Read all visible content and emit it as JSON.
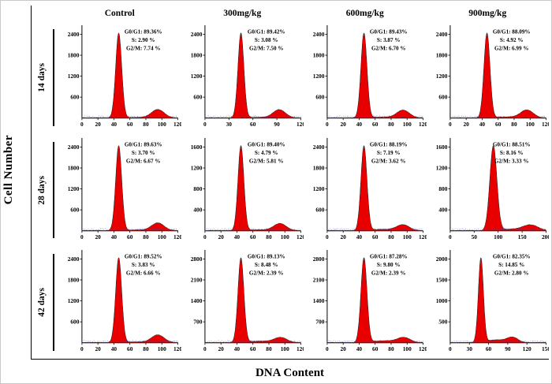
{
  "figure": {
    "y_axis_label": "Cell Number",
    "x_axis_label": "DNA Content",
    "columns": [
      "Control",
      "300mg/kg",
      "600mg/kg",
      "900mg/kg"
    ],
    "rows": [
      "14 days",
      "28 days",
      "42 days"
    ],
    "colors": {
      "histogram_fill": "#e80000",
      "histogram_stroke": "#1a1a1a",
      "noise_trace": "#4747b8",
      "axis": "#000000"
    }
  },
  "chart_data": {
    "type": "area",
    "title": "",
    "xlabel": "DNA Content",
    "ylabel": "Cell Number",
    "description": "Flow cytometry cell-cycle DNA histograms: 3 time points (rows) x 4 dose groups (columns), red G0/G1 peak with smaller G2/M peak",
    "panels": [
      {
        "row": "14 days",
        "column": "Control",
        "g0g1_pct": 89.36,
        "s_pct": 2.9,
        "g2m_pct": 7.74,
        "annotation_lines": [
          "G0/G1: 89.36%",
          "S: 2.90 %",
          "G2/M: 7.74 %"
        ],
        "y_ticks": [
          600,
          1200,
          1800,
          2400
        ],
        "x_ticks": [
          0,
          20,
          40,
          60,
          80,
          100,
          120
        ],
        "peak_x": 46,
        "g2m_peak_x": 95
      },
      {
        "row": "14 days",
        "column": "300mg/kg",
        "g0g1_pct": 89.42,
        "s_pct": 3.08,
        "g2m_pct": 7.5,
        "annotation_lines": [
          "G0/G1: 89.42%",
          "S: 3.08 %",
          "G2/M: 7.50 %"
        ],
        "y_ticks": [
          600,
          1200,
          1800,
          2400
        ],
        "x_ticks": [
          0,
          30,
          60,
          90,
          120
        ],
        "peak_x": 45,
        "g2m_peak_x": 93
      },
      {
        "row": "14 days",
        "column": "600mg/kg",
        "g0g1_pct": 89.43,
        "s_pct": 3.87,
        "g2m_pct": 6.7,
        "annotation_lines": [
          "G0/G1: 89.43%",
          "S: 3.87 %",
          "G2/M: 6.70 %"
        ],
        "y_ticks": [
          600,
          1200,
          1800,
          2400
        ],
        "x_ticks": [
          0,
          20,
          40,
          60,
          80,
          100,
          120
        ],
        "peak_x": 46,
        "g2m_peak_x": 95
      },
      {
        "row": "14 days",
        "column": "900mg/kg",
        "g0g1_pct": 88.09,
        "s_pct": 4.92,
        "g2m_pct": 6.99,
        "annotation_lines": [
          "G0/G1: 88.09%",
          "S: 4.92 %",
          "G2/M: 6.99 %"
        ],
        "y_ticks": [
          600,
          1200,
          1800,
          2400
        ],
        "x_ticks": [
          0,
          20,
          40,
          60,
          80,
          100,
          120
        ],
        "peak_x": 46,
        "g2m_peak_x": 96
      },
      {
        "row": "28 days",
        "column": "Control",
        "g0g1_pct": 89.63,
        "s_pct": 3.7,
        "g2m_pct": 6.67,
        "annotation_lines": [
          "G0/G1: 89.63%",
          "S: 3.70 %",
          "G2/M: 6.67 %"
        ],
        "y_ticks": [
          600,
          1200,
          1800,
          2400
        ],
        "x_ticks": [
          0,
          20,
          40,
          60,
          80,
          100,
          120
        ],
        "peak_x": 46,
        "g2m_peak_x": 95
      },
      {
        "row": "28 days",
        "column": "300mg/kg",
        "g0g1_pct": 89.4,
        "s_pct": 4.79,
        "g2m_pct": 5.81,
        "annotation_lines": [
          "G0/G1: 89.40%",
          "S: 4.79 %",
          "G2/M: 5.81 %"
        ],
        "y_ticks": [
          400,
          800,
          1200,
          1600
        ],
        "x_ticks": [
          0,
          20,
          40,
          60,
          80,
          100,
          120
        ],
        "peak_x": 45,
        "g2m_peak_x": 94
      },
      {
        "row": "28 days",
        "column": "600mg/kg",
        "g0g1_pct": 88.19,
        "s_pct": 7.19,
        "g2m_pct": 3.62,
        "annotation_lines": [
          "G0/G1: 88.19%",
          "S: 7.19 %",
          "G2/M: 3.62 %"
        ],
        "y_ticks": [
          600,
          1200,
          1800,
          2400
        ],
        "x_ticks": [
          0,
          20,
          40,
          60,
          80,
          100,
          120
        ],
        "peak_x": 46,
        "g2m_peak_x": 95
      },
      {
        "row": "28 days",
        "column": "900mg/kg",
        "g0g1_pct": 88.51,
        "s_pct": 8.16,
        "g2m_pct": 3.33,
        "annotation_lines": [
          "G0/G1: 88.51%",
          "S: 8.16 %",
          "G2/M: 3.33 %"
        ],
        "y_ticks": [
          400,
          800,
          1200,
          1600
        ],
        "x_ticks": [
          0,
          50,
          100,
          150,
          200
        ],
        "peak_x": 90,
        "g2m_peak_x": 168
      },
      {
        "row": "42 days",
        "column": "Control",
        "g0g1_pct": 89.52,
        "s_pct": 3.83,
        "g2m_pct": 6.66,
        "annotation_lines": [
          "G0/G1: 89.52%",
          "S: 3.83 %",
          "G2/M: 6.66 %"
        ],
        "y_ticks": [
          600,
          1200,
          1800,
          2400
        ],
        "x_ticks": [
          0,
          20,
          40,
          60,
          80,
          100,
          120
        ],
        "peak_x": 46,
        "g2m_peak_x": 95
      },
      {
        "row": "42 days",
        "column": "300mg/kg",
        "g0g1_pct": 89.13,
        "s_pct": 8.48,
        "g2m_pct": 2.39,
        "annotation_lines": [
          "G0/G1: 89.13%",
          "S: 8.48 %",
          "G2/M: 2.39 %"
        ],
        "y_ticks": [
          700,
          1400,
          2100,
          2800
        ],
        "x_ticks": [
          0,
          20,
          40,
          60,
          80,
          100,
          120
        ],
        "peak_x": 45,
        "g2m_peak_x": 95
      },
      {
        "row": "42 days",
        "column": "600mg/kg",
        "g0g1_pct": 87.28,
        "s_pct": 9.8,
        "g2m_pct": 2.39,
        "annotation_lines": [
          "G0/G1: 87.28%",
          "S: 9.80 %",
          "G2/M: 2.39 %"
        ],
        "y_ticks": [
          700,
          1400,
          2100,
          2800
        ],
        "x_ticks": [
          0,
          20,
          40,
          60,
          80,
          100,
          120
        ],
        "peak_x": 46,
        "g2m_peak_x": 96
      },
      {
        "row": "42 days",
        "column": "900mg/kg",
        "g0g1_pct": 82.35,
        "s_pct": 14.85,
        "g2m_pct": 2.8,
        "annotation_lines": [
          "G0/G1: 82.35%",
          "S: 14.85 %",
          "G2/M: 2.80 %"
        ],
        "y_ticks": [
          500,
          1000,
          1500,
          2000
        ],
        "x_ticks": [
          0,
          30,
          60,
          90,
          120,
          150
        ],
        "peak_x": 48,
        "g2m_peak_x": 98
      }
    ]
  }
}
